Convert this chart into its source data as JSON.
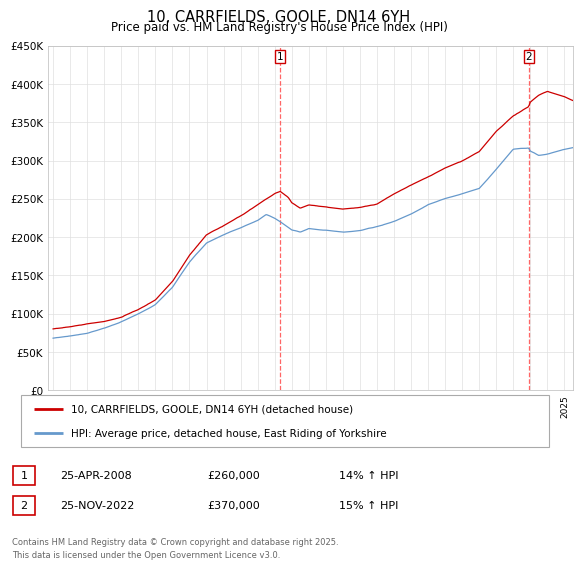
{
  "title": "10, CARRFIELDS, GOOLE, DN14 6YH",
  "subtitle": "Price paid vs. HM Land Registry's House Price Index (HPI)",
  "legend_line1": "10, CARRFIELDS, GOOLE, DN14 6YH (detached house)",
  "legend_line2": "HPI: Average price, detached house, East Riding of Yorkshire",
  "annotation1_date": "25-APR-2008",
  "annotation1_price": "£260,000",
  "annotation1_hpi": "14% ↑ HPI",
  "annotation2_date": "25-NOV-2022",
  "annotation2_price": "£370,000",
  "annotation2_hpi": "15% ↑ HPI",
  "footer": "Contains HM Land Registry data © Crown copyright and database right 2025.\nThis data is licensed under the Open Government Licence v3.0.",
  "red_color": "#cc0000",
  "blue_color": "#6699cc",
  "dashed_color": "#ff6666",
  "ylim": [
    0,
    450000
  ],
  "yticks": [
    0,
    50000,
    100000,
    150000,
    200000,
    250000,
    300000,
    350000,
    400000,
    450000
  ],
  "xlim_start": 1994.7,
  "xlim_end": 2025.5,
  "transaction1_x": 2008.32,
  "transaction2_x": 2022.9,
  "hpi_waypoints": [
    [
      1995,
      68000
    ],
    [
      1996,
      71000
    ],
    [
      1997,
      75000
    ],
    [
      1998,
      82000
    ],
    [
      1999,
      90000
    ],
    [
      2000,
      100000
    ],
    [
      2001,
      112000
    ],
    [
      2002,
      135000
    ],
    [
      2003,
      168000
    ],
    [
      2004,
      193000
    ],
    [
      2005,
      203000
    ],
    [
      2006,
      212000
    ],
    [
      2007,
      222000
    ],
    [
      2007.5,
      230000
    ],
    [
      2008,
      225000
    ],
    [
      2008.5,
      218000
    ],
    [
      2009,
      210000
    ],
    [
      2009.5,
      207000
    ],
    [
      2010,
      212000
    ],
    [
      2011,
      210000
    ],
    [
      2012,
      208000
    ],
    [
      2013,
      210000
    ],
    [
      2014,
      215000
    ],
    [
      2015,
      222000
    ],
    [
      2016,
      232000
    ],
    [
      2017,
      244000
    ],
    [
      2018,
      252000
    ],
    [
      2019,
      258000
    ],
    [
      2020,
      265000
    ],
    [
      2021,
      290000
    ],
    [
      2022,
      316000
    ],
    [
      2022.9,
      318000
    ],
    [
      2023,
      314000
    ],
    [
      2023.5,
      308000
    ],
    [
      2024,
      310000
    ],
    [
      2025,
      316000
    ],
    [
      2025.5,
      318000
    ]
  ],
  "red_waypoints": [
    [
      1995,
      80000
    ],
    [
      1996,
      83000
    ],
    [
      1997,
      87000
    ],
    [
      1998,
      90000
    ],
    [
      1999,
      96000
    ],
    [
      2000,
      106000
    ],
    [
      2001,
      118000
    ],
    [
      2002,
      142000
    ],
    [
      2003,
      176000
    ],
    [
      2004,
      203000
    ],
    [
      2005,
      215000
    ],
    [
      2006,
      228000
    ],
    [
      2007,
      242000
    ],
    [
      2007.5,
      250000
    ],
    [
      2008,
      257000
    ],
    [
      2008.32,
      260000
    ],
    [
      2008.8,
      252000
    ],
    [
      2009,
      245000
    ],
    [
      2009.5,
      238000
    ],
    [
      2010,
      242000
    ],
    [
      2011,
      240000
    ],
    [
      2012,
      236000
    ],
    [
      2013,
      238000
    ],
    [
      2014,
      242000
    ],
    [
      2015,
      255000
    ],
    [
      2016,
      267000
    ],
    [
      2017,
      278000
    ],
    [
      2018,
      290000
    ],
    [
      2019,
      300000
    ],
    [
      2020,
      312000
    ],
    [
      2021,
      338000
    ],
    [
      2022,
      358000
    ],
    [
      2022.9,
      370000
    ],
    [
      2023,
      376000
    ],
    [
      2023.5,
      385000
    ],
    [
      2024,
      390000
    ],
    [
      2025,
      383000
    ],
    [
      2025.5,
      378000
    ]
  ]
}
